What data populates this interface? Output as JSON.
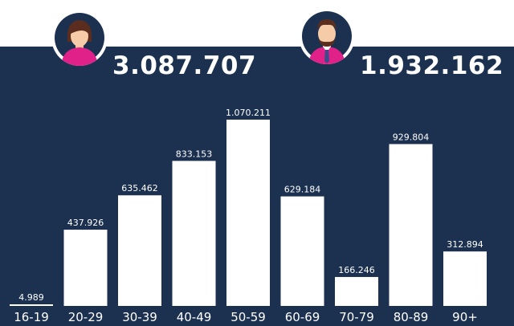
{
  "colors": {
    "background": "#1c3150",
    "bar": "#ffffff",
    "top_band": "#ffffff",
    "avatar_accent": "#e0218a",
    "avatar_bg": "#1c3150"
  },
  "female": {
    "icon": "woman-avatar-icon",
    "total": "3.087.707"
  },
  "male": {
    "icon": "man-avatar-icon",
    "total": "1.932.162"
  },
  "chart_data": {
    "type": "bar",
    "title": "",
    "xlabel": "",
    "ylabel": "",
    "ylim": [
      0,
      1070211
    ],
    "categories": [
      "16-19",
      "20-29",
      "30-39",
      "40-49",
      "50-59",
      "60-69",
      "70-79",
      "80-89",
      "90+"
    ],
    "values": [
      4989,
      437926,
      635462,
      833153,
      1070211,
      629184,
      166246,
      929804,
      312894
    ],
    "value_labels": [
      "4.989",
      "437.926",
      "635.462",
      "833.153",
      "1.070.211",
      "629.184",
      "166.246",
      "929.804",
      "312.894"
    ]
  }
}
